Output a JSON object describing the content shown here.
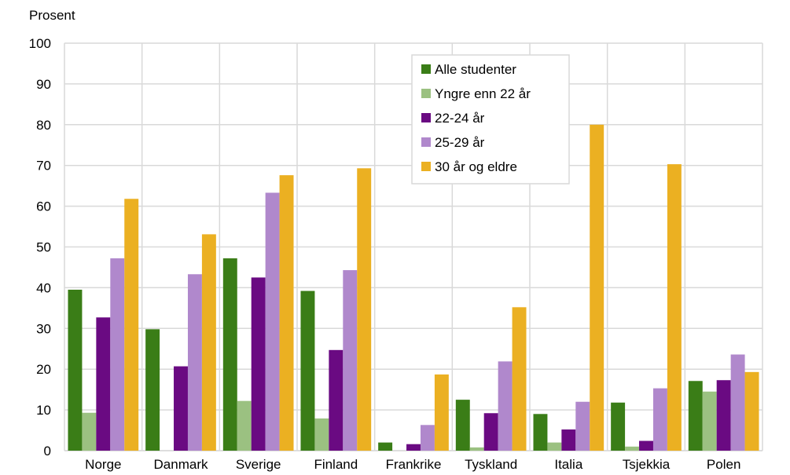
{
  "chart_data": {
    "type": "bar",
    "ylabel": "Prosent",
    "ylim": [
      0,
      100
    ],
    "yticks": [
      0,
      10,
      20,
      30,
      40,
      50,
      60,
      70,
      80,
      90,
      100
    ],
    "grid": true,
    "legend_position": "top-center",
    "categories": [
      "Norge",
      "Danmark",
      "Sverige",
      "Finland",
      "Frankrike",
      "Tyskland",
      "Italia",
      "Tsjekkia",
      "Polen"
    ],
    "series": [
      {
        "name": "Alle studenter",
        "color": "#3a7d17",
        "values": [
          39.5,
          29.8,
          47.2,
          39.2,
          2.0,
          12.5,
          9.0,
          11.8,
          17.1
        ]
      },
      {
        "name": "Yngre enn 22 år",
        "color": "#9bc181",
        "values": [
          9.3,
          0.0,
          12.2,
          7.9,
          0.0,
          0.8,
          2.0,
          1.0,
          14.5
        ]
      },
      {
        "name": "22-24 år",
        "color": "#6a0a82",
        "values": [
          32.7,
          20.7,
          42.5,
          24.7,
          1.6,
          9.2,
          5.2,
          2.4,
          17.3
        ]
      },
      {
        "name": "25-29 år",
        "color": "#b088cc",
        "values": [
          47.2,
          43.3,
          63.3,
          44.3,
          6.3,
          21.9,
          12.0,
          15.3,
          23.6
        ]
      },
      {
        "name": "30 år og eldre",
        "color": "#ebb022",
        "values": [
          61.8,
          53.1,
          67.6,
          69.3,
          18.7,
          35.2,
          80.0,
          70.3,
          19.3
        ]
      }
    ]
  }
}
